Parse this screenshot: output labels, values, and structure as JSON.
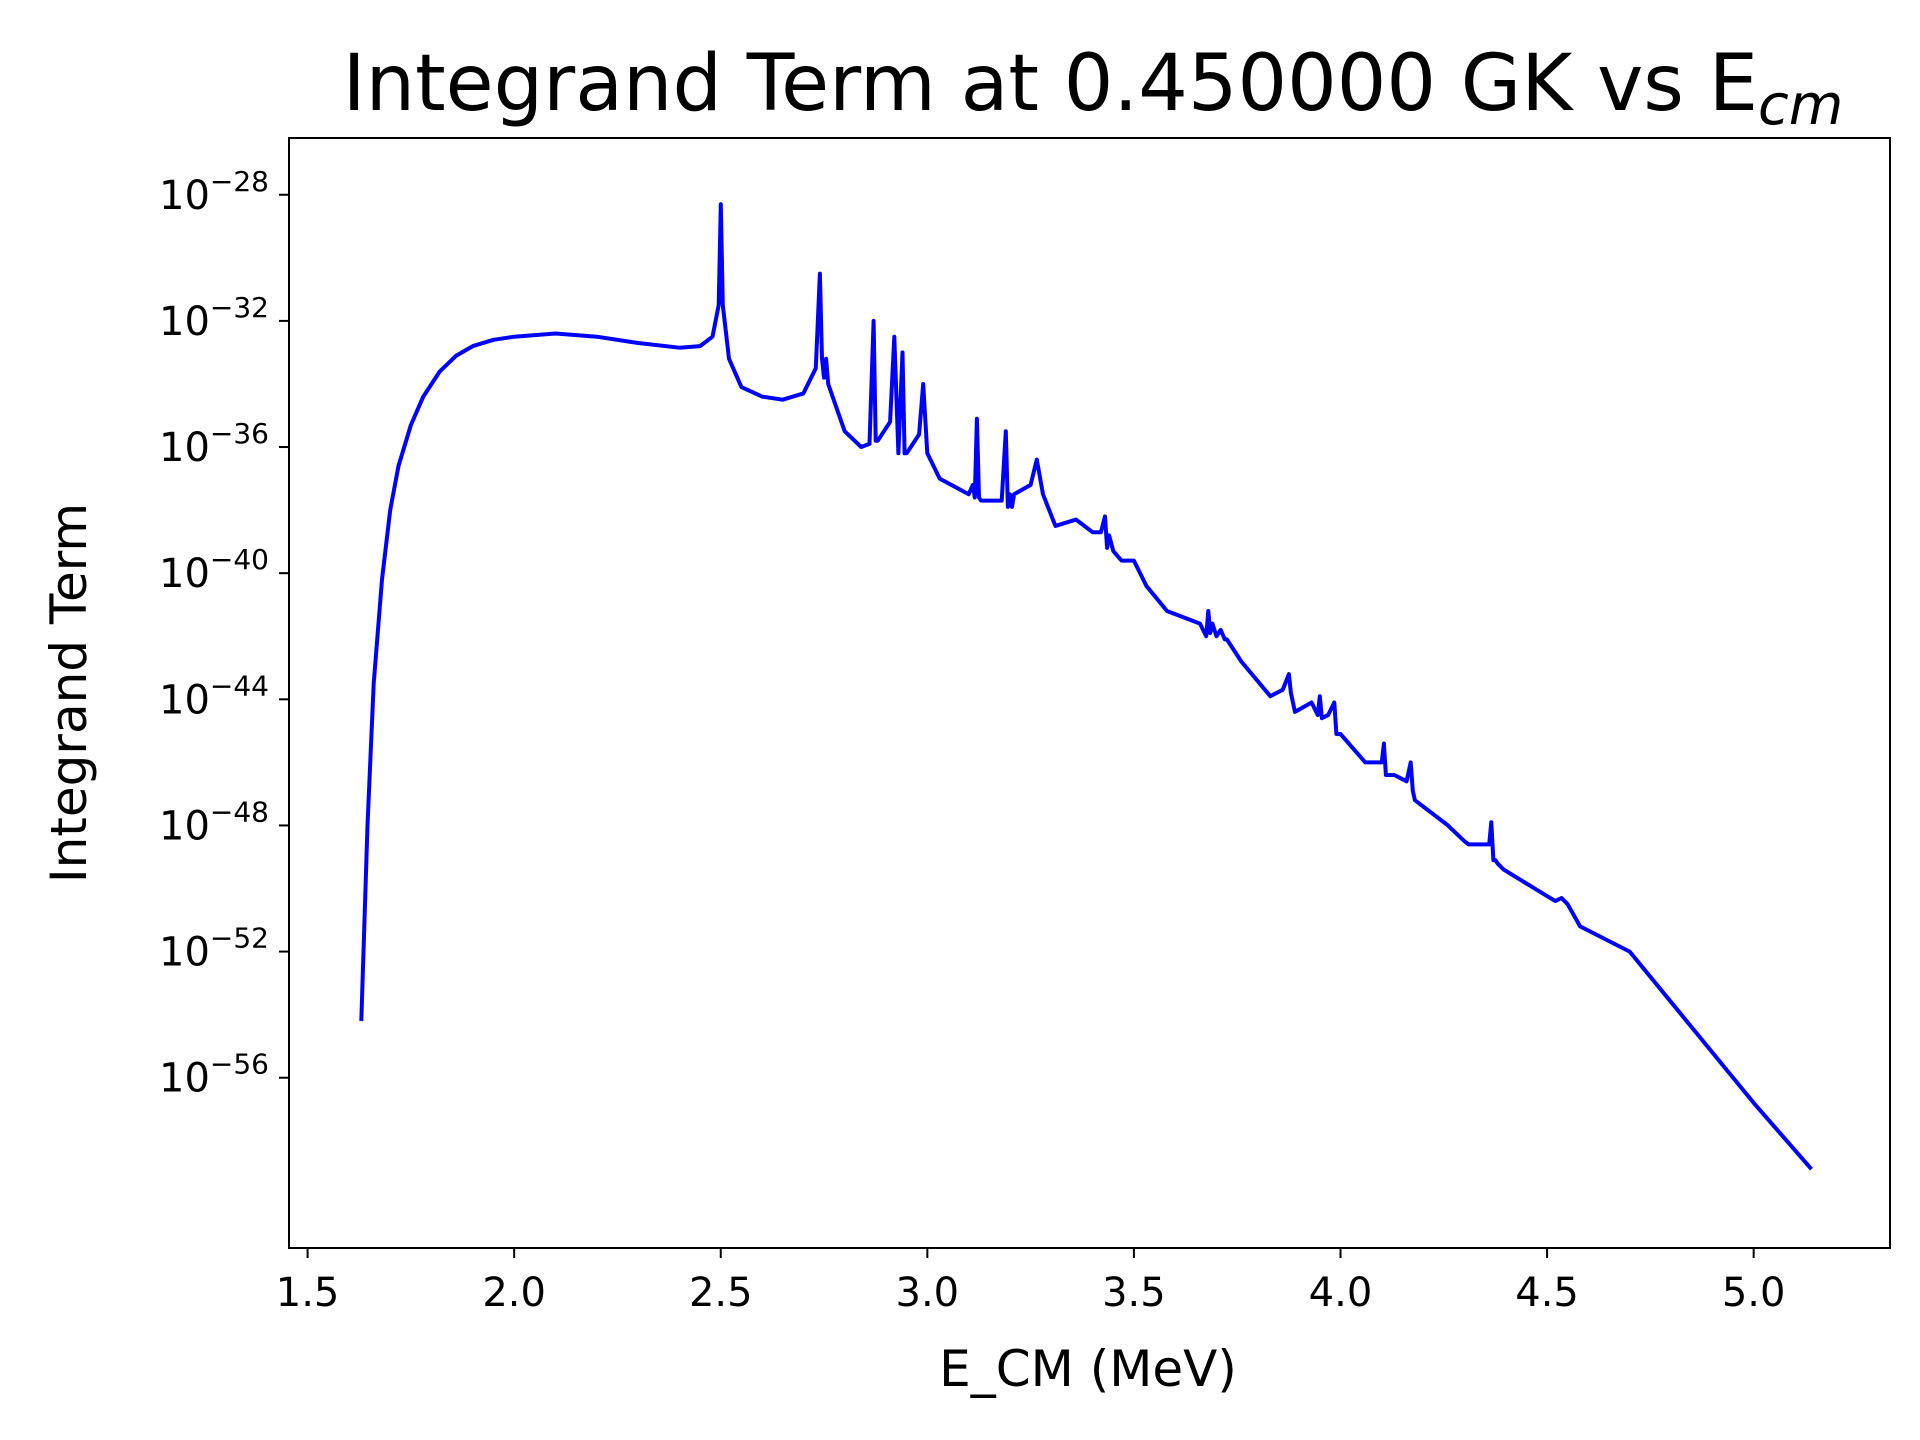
{
  "chart_data": {
    "type": "line",
    "title": {
      "main": "Integrand Term at 0.450000 GK vs E",
      "subscript": "cm"
    },
    "xlabel": "E_CM (MeV)",
    "ylabel": "Integrand Term",
    "yscale": "log",
    "grid": false,
    "xlim": [
      1.455,
      5.33
    ],
    "ylim_exponent": [
      -61.4,
      -26.2
    ],
    "xticks": [
      1.5,
      2.0,
      2.5,
      3.0,
      3.5,
      4.0,
      4.5,
      5.0
    ],
    "xtick_labels": [
      "1.5",
      "2.0",
      "2.5",
      "3.0",
      "3.5",
      "4.0",
      "4.5",
      "5.0"
    ],
    "yticks_exponent": [
      -28,
      -32,
      -36,
      -40,
      -44,
      -48,
      -52,
      -56
    ],
    "ytick_labels": [
      {
        "base": "10",
        "exp": "−28"
      },
      {
        "base": "10",
        "exp": "−32"
      },
      {
        "base": "10",
        "exp": "−36"
      },
      {
        "base": "10",
        "exp": "−40"
      },
      {
        "base": "10",
        "exp": "−44"
      },
      {
        "base": "10",
        "exp": "−48"
      },
      {
        "base": "10",
        "exp": "−52"
      },
      {
        "base": "10",
        "exp": "−56"
      }
    ],
    "series": [
      {
        "color": "#0000ff",
        "x": [
          1.63,
          1.645,
          1.66,
          1.68,
          1.7,
          1.72,
          1.75,
          1.78,
          1.82,
          1.86,
          1.9,
          1.95,
          2.0,
          2.05,
          2.1,
          2.15,
          2.2,
          2.3,
          2.4,
          2.45,
          2.48,
          2.495,
          2.5,
          2.505,
          2.52,
          2.55,
          2.6,
          2.65,
          2.7,
          2.73,
          2.74,
          2.745,
          2.75,
          2.755,
          2.76,
          2.8,
          2.84,
          2.86,
          2.87,
          2.875,
          2.88,
          2.91,
          2.92,
          2.93,
          2.94,
          2.945,
          2.95,
          2.98,
          2.99,
          3.0,
          3.03,
          3.1,
          3.11,
          3.115,
          3.12,
          3.125,
          3.13,
          3.18,
          3.19,
          3.195,
          3.2,
          3.205,
          3.21,
          3.25,
          3.265,
          3.28,
          3.31,
          3.36,
          3.4,
          3.42,
          3.43,
          3.435,
          3.44,
          3.45,
          3.47,
          3.5,
          3.53,
          3.58,
          3.66,
          3.675,
          3.68,
          3.685,
          3.69,
          3.7,
          3.71,
          3.72,
          3.725,
          3.76,
          3.83,
          3.86,
          3.875,
          3.88,
          3.89,
          3.93,
          3.945,
          3.95,
          3.955,
          3.97,
          3.985,
          3.99,
          4.0,
          4.06,
          4.1,
          4.105,
          4.11,
          4.13,
          4.16,
          4.17,
          4.175,
          4.18,
          4.26,
          4.3,
          4.31,
          4.36,
          4.365,
          4.37,
          4.375,
          4.38,
          4.395,
          4.52,
          4.535,
          4.55,
          4.58,
          4.7,
          5.0,
          5.14
        ],
        "y_exponent": [
          -54.2,
          -48.0,
          -43.5,
          -40.2,
          -38.0,
          -36.6,
          -35.3,
          -34.4,
          -33.6,
          -33.1,
          -32.8,
          -32.6,
          -32.5,
          -32.45,
          -32.4,
          -32.45,
          -32.5,
          -32.7,
          -32.85,
          -32.8,
          -32.5,
          -31.5,
          -28.3,
          -31.5,
          -33.2,
          -34.1,
          -34.4,
          -34.5,
          -34.3,
          -33.5,
          -30.5,
          -33.2,
          -33.8,
          -33.2,
          -34.0,
          -35.5,
          -36.0,
          -35.9,
          -32.0,
          -35.8,
          -35.8,
          -35.2,
          -32.5,
          -36.2,
          -33.0,
          -36.2,
          -36.2,
          -35.6,
          -34.0,
          -36.2,
          -37.0,
          -37.5,
          -37.2,
          -37.6,
          -35.1,
          -37.6,
          -37.7,
          -37.7,
          -35.5,
          -37.9,
          -37.5,
          -37.9,
          -37.5,
          -37.2,
          -36.4,
          -37.5,
          -38.5,
          -38.3,
          -38.7,
          -38.7,
          -38.2,
          -39.2,
          -38.8,
          -39.3,
          -39.6,
          -39.6,
          -40.4,
          -41.2,
          -41.6,
          -42.0,
          -41.2,
          -41.9,
          -41.6,
          -42.0,
          -41.8,
          -42.1,
          -42.1,
          -42.8,
          -43.9,
          -43.7,
          -43.2,
          -43.8,
          -44.4,
          -44.1,
          -44.5,
          -43.9,
          -44.6,
          -44.5,
          -44.1,
          -45.1,
          -45.1,
          -46.0,
          -46.0,
          -45.4,
          -46.4,
          -46.4,
          -46.6,
          -46.0,
          -46.9,
          -47.2,
          -48.0,
          -48.5,
          -48.6,
          -48.6,
          -47.9,
          -49.1,
          -49.1,
          -49.2,
          -49.4,
          -50.4,
          -50.3,
          -50.5,
          -51.2,
          -52.0,
          -56.8,
          -58.9
        ]
      }
    ]
  }
}
